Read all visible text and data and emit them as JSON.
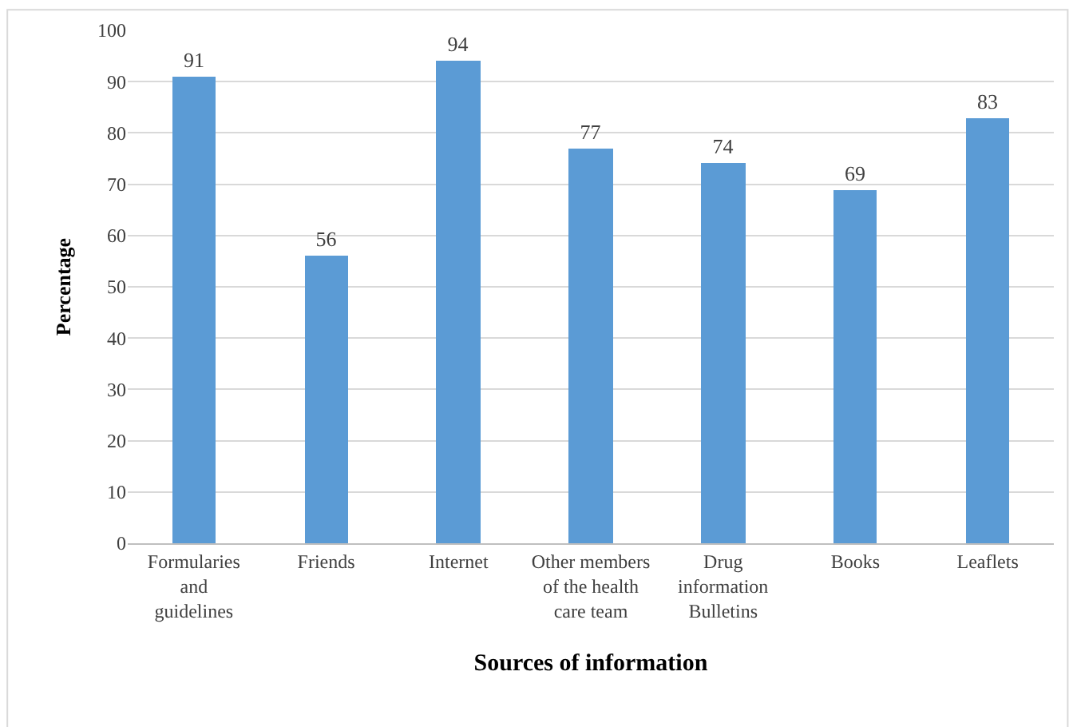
{
  "chart_data": {
    "type": "bar",
    "xlabel": "Sources of information",
    "ylabel": "Percentage",
    "categories": [
      "Formularies and guidelines",
      "Friends",
      "Internet",
      "Other members of the health care team",
      "Drug information Bulletins",
      "Books",
      "Leaflets"
    ],
    "values": [
      91,
      56,
      94,
      77,
      74,
      69,
      83
    ],
    "color": "#5b9bd5",
    "ylim": [
      0,
      100
    ],
    "yticks": [
      0,
      10,
      20,
      30,
      40,
      50,
      60,
      70,
      80,
      90,
      100
    ],
    "grid": "y",
    "data_labels": true,
    "legend": false
  }
}
